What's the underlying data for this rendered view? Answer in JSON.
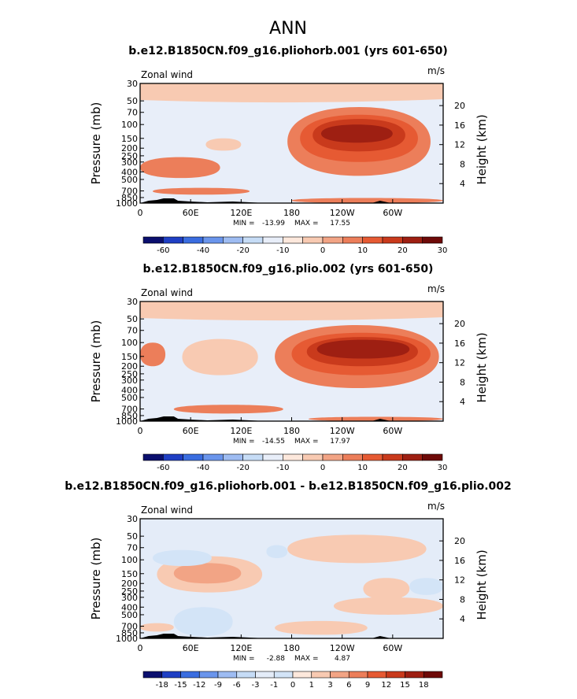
{
  "figure_title": "ANN",
  "colors": {
    "seq": [
      "#0b0f6e",
      "#1f3fc4",
      "#3a6de0",
      "#6a95ec",
      "#9ebcf2",
      "#c6dcf6",
      "#e8eef9",
      "#fde8dc",
      "#f8cab2",
      "#f2a485",
      "#ec7e5a",
      "#e65a33",
      "#c93a1c",
      "#9e1f12",
      "#6e0a08"
    ],
    "anom": [
      "#0b0f6e",
      "#1f3fc4",
      "#3a6de0",
      "#6a95ec",
      "#9ebcf2",
      "#c6dcf6",
      "#e4ecf8",
      "#d3e4f7",
      "#fde8dc",
      "#f8cab2",
      "#f2a485",
      "#ec7e5a",
      "#e65a33",
      "#c93a1c",
      "#9e1f12",
      "#6e0a08"
    ],
    "topography": "#000000"
  },
  "chart_data": [
    {
      "type": "contour",
      "title": "b.e12.B1850CN.f09_g16.pliohorb.001 (yrs 601-650)",
      "left_label": "Zonal wind",
      "right_label": "m/s",
      "ylabel": "Pressure (mb)",
      "ylabel_right": "Height (km)",
      "xticks": [
        "0",
        "60E",
        "120E",
        "180",
        "120W",
        "60W"
      ],
      "xtick_values": [
        0,
        60,
        120,
        180,
        240,
        300
      ],
      "xlim": [
        0,
        360
      ],
      "yticks": [
        "30",
        "50",
        "70",
        "100",
        "150",
        "200",
        "250",
        "300",
        "400",
        "500",
        "700",
        "850",
        "1000"
      ],
      "ytick_values": [
        30,
        50,
        70,
        100,
        150,
        200,
        250,
        300,
        400,
        500,
        700,
        850,
        1000
      ],
      "ylim": [
        1000,
        30
      ],
      "height_ticks": [
        "20",
        "16",
        "12",
        "8",
        "4"
      ],
      "height_values": [
        20,
        16,
        12,
        8,
        4
      ],
      "min_label": "MIN =",
      "min": "-13.99",
      "max_label": "MAX =",
      "max": "17.55",
      "colorbar_labels": [
        "-60",
        "-40",
        "-20",
        "-10",
        "0",
        "10",
        "20",
        "30"
      ],
      "colorbar_levels": [
        -70,
        -60,
        -50,
        -40,
        -30,
        -20,
        -15,
        -10,
        -5,
        0,
        5,
        10,
        15,
        20,
        25,
        30
      ],
      "features": [
        {
          "lon": [
            0,
            360
          ],
          "p": [
            30,
            52
          ],
          "level": -5
        },
        {
          "lon": [
            175,
            345
          ],
          "p": [
            60,
            450
          ],
          "level": 5
        },
        {
          "lon": [
            190,
            330
          ],
          "p": [
            75,
            300
          ],
          "level": 10
        },
        {
          "lon": [
            205,
            315
          ],
          "p": [
            85,
            220
          ],
          "level": 15
        },
        {
          "lon": [
            215,
            300
          ],
          "p": [
            100,
            170
          ],
          "level": 20
        },
        {
          "lon": [
            0,
            95
          ],
          "p": [
            260,
            480
          ],
          "level": 5
        },
        {
          "lon": [
            15,
            130
          ],
          "p": [
            640,
            780
          ],
          "level": 5
        },
        {
          "lon": [
            78,
            120
          ],
          "p": [
            150,
            215
          ],
          "level": -5
        },
        {
          "lon": [
            180,
            360
          ],
          "p": [
            860,
            1000
          ],
          "level": 5
        }
      ]
    },
    {
      "type": "contour",
      "title": "b.e12.B1850CN.f09_g16.plio.002 (yrs 601-650)",
      "left_label": "Zonal wind",
      "right_label": "m/s",
      "ylabel": "Pressure (mb)",
      "ylabel_right": "Height (km)",
      "xticks": [
        "0",
        "60E",
        "120E",
        "180",
        "120W",
        "60W"
      ],
      "xtick_values": [
        0,
        60,
        120,
        180,
        240,
        300
      ],
      "xlim": [
        0,
        360
      ],
      "yticks": [
        "30",
        "50",
        "70",
        "100",
        "150",
        "200",
        "250",
        "300",
        "400",
        "500",
        "700",
        "850",
        "1000"
      ],
      "ytick_values": [
        30,
        50,
        70,
        100,
        150,
        200,
        250,
        300,
        400,
        500,
        700,
        850,
        1000
      ],
      "ylim": [
        1000,
        30
      ],
      "height_ticks": [
        "20",
        "16",
        "12",
        "8",
        "4"
      ],
      "height_values": [
        20,
        16,
        12,
        8,
        4
      ],
      "min_label": "MIN =",
      "min": "-14.55",
      "max_label": "MAX =",
      "max": "17.97",
      "colorbar_labels": [
        "-60",
        "-40",
        "-20",
        "-10",
        "0",
        "10",
        "20",
        "30"
      ],
      "colorbar_levels": [
        -70,
        -60,
        -50,
        -40,
        -30,
        -20,
        -15,
        -10,
        -5,
        0,
        5,
        10,
        15,
        20,
        25,
        30
      ],
      "features": [
        {
          "lon": [
            0,
            360
          ],
          "p": [
            30,
            52
          ],
          "level": -5
        },
        {
          "lon": [
            160,
            355
          ],
          "p": [
            60,
            380
          ],
          "level": 5
        },
        {
          "lon": [
            180,
            345
          ],
          "p": [
            75,
            260
          ],
          "level": 10
        },
        {
          "lon": [
            198,
            330
          ],
          "p": [
            85,
            200
          ],
          "level": 15
        },
        {
          "lon": [
            210,
            320
          ],
          "p": [
            92,
            160
          ],
          "level": 20
        },
        {
          "lon": [
            50,
            140
          ],
          "p": [
            90,
            260
          ],
          "level": -5
        },
        {
          "lon": [
            0,
            30
          ],
          "p": [
            100,
            200
          ],
          "level": 5
        },
        {
          "lon": [
            40,
            170
          ],
          "p": [
            620,
            800
          ],
          "level": 5
        },
        {
          "lon": [
            200,
            360
          ],
          "p": [
            880,
            1000
          ],
          "level": 5
        }
      ]
    },
    {
      "type": "contour",
      "title": "b.e12.B1850CN.f09_g16.pliohorb.001 - b.e12.B1850CN.f09_g16.plio.002",
      "left_label": "Zonal wind",
      "right_label": "m/s",
      "ylabel": "Pressure (mb)",
      "ylabel_right": "Height (km)",
      "xticks": [
        "0",
        "60E",
        "120E",
        "180",
        "120W",
        "60W"
      ],
      "xtick_values": [
        0,
        60,
        120,
        180,
        240,
        300
      ],
      "xlim": [
        0,
        360
      ],
      "yticks": [
        "30",
        "50",
        "70",
        "100",
        "150",
        "200",
        "250",
        "300",
        "400",
        "500",
        "700",
        "850",
        "1000"
      ],
      "ytick_values": [
        30,
        50,
        70,
        100,
        150,
        200,
        250,
        300,
        400,
        500,
        700,
        850,
        1000
      ],
      "ylim": [
        1000,
        30
      ],
      "height_ticks": [
        "20",
        "16",
        "12",
        "8",
        "4"
      ],
      "height_values": [
        20,
        16,
        12,
        8,
        4
      ],
      "min_label": "MIN =",
      "min": "-2.88",
      "max_label": "MAX =",
      "max": "4.87",
      "colorbar_labels": [
        "-18",
        "-15",
        "-12",
        "-9",
        "-6",
        "-3",
        "-1",
        "0",
        "1",
        "3",
        "6",
        "9",
        "12",
        "15",
        "18"
      ],
      "colorbar_levels": [
        -21,
        -18,
        -15,
        -12,
        -9,
        -6,
        -3,
        -1,
        0,
        1,
        3,
        6,
        9,
        12,
        15,
        18
      ],
      "features": [
        {
          "lon": [
            175,
            340
          ],
          "p": [
            48,
            110
          ],
          "level": 1
        },
        {
          "lon": [
            20,
            145
          ],
          "p": [
            90,
            260
          ],
          "level": 1
        },
        {
          "lon": [
            40,
            120
          ],
          "p": [
            110,
            200
          ],
          "level": 3
        },
        {
          "lon": [
            15,
            85
          ],
          "p": [
            75,
            120
          ],
          "level": -1
        },
        {
          "lon": [
            150,
            175
          ],
          "p": [
            65,
            95
          ],
          "level": -1
        },
        {
          "lon": [
            265,
            320
          ],
          "p": [
            170,
            320
          ],
          "level": 1
        },
        {
          "lon": [
            320,
            360
          ],
          "p": [
            170,
            280
          ],
          "level": -1
        },
        {
          "lon": [
            40,
            110
          ],
          "p": [
            400,
            940
          ],
          "level": -1
        },
        {
          "lon": [
            160,
            270
          ],
          "p": [
            600,
            900
          ],
          "level": 1
        },
        {
          "lon": [
            230,
            360
          ],
          "p": [
            300,
            500
          ],
          "level": 1
        },
        {
          "lon": [
            0,
            40
          ],
          "p": [
            640,
            820
          ],
          "level": 1
        }
      ]
    }
  ]
}
